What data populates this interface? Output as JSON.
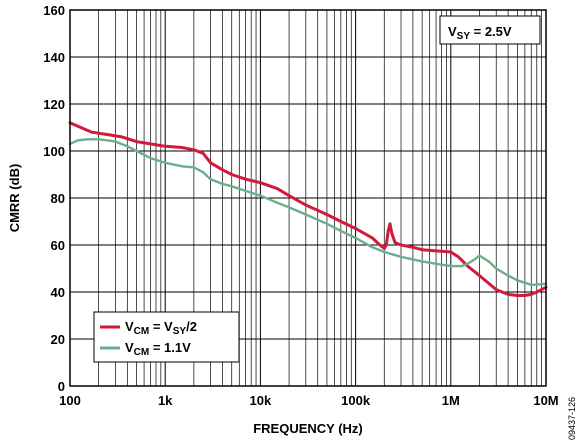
{
  "chart_data": {
    "type": "line",
    "xscale": "log",
    "xlim": [
      100,
      10000000
    ],
    "ylim": [
      0,
      160
    ],
    "xlabel": "FREQUENCY (Hz)",
    "ylabel": "CMRR (dB)",
    "x_ticks": [
      {
        "value": 100,
        "label": "100"
      },
      {
        "value": 1000,
        "label": "1k"
      },
      {
        "value": 10000,
        "label": "10k"
      },
      {
        "value": 100000,
        "label": "100k"
      },
      {
        "value": 1000000,
        "label": "1M"
      },
      {
        "value": 10000000,
        "label": "10M"
      }
    ],
    "y_ticks": [
      0,
      20,
      40,
      60,
      80,
      100,
      120,
      140,
      160
    ],
    "grid": true,
    "annotation": {
      "main": "V",
      "sub": "SY",
      "rest": " = 2.5V",
      "placement": "top-right"
    },
    "legend_placement": "bottom-left",
    "series": [
      {
        "legend": {
          "main1": "V",
          "sub1": "CM",
          "mid": " = V",
          "sub2": "SY",
          "rest": "/2"
        },
        "color": "#d21a3a",
        "points": [
          [
            100,
            112
          ],
          [
            130,
            110
          ],
          [
            170,
            108
          ],
          [
            250,
            107
          ],
          [
            350,
            106
          ],
          [
            500,
            104
          ],
          [
            700,
            103
          ],
          [
            1000,
            102
          ],
          [
            1500,
            101.5
          ],
          [
            2000,
            100.5
          ],
          [
            2500,
            99
          ],
          [
            3000,
            95
          ],
          [
            4000,
            92
          ],
          [
            5000,
            90
          ],
          [
            7000,
            88
          ],
          [
            10000,
            86.5
          ],
          [
            15000,
            84
          ],
          [
            20000,
            81
          ],
          [
            30000,
            77
          ],
          [
            50000,
            73
          ],
          [
            70000,
            70
          ],
          [
            100000,
            67
          ],
          [
            150000,
            63
          ],
          [
            180000,
            60
          ],
          [
            200000,
            58.5
          ],
          [
            210000,
            60
          ],
          [
            220000,
            66
          ],
          [
            230000,
            69
          ],
          [
            240000,
            65
          ],
          [
            260000,
            61
          ],
          [
            300000,
            60
          ],
          [
            400000,
            59
          ],
          [
            500000,
            58
          ],
          [
            700000,
            57.5
          ],
          [
            1000000,
            57
          ],
          [
            1200000,
            55
          ],
          [
            1500000,
            51
          ],
          [
            2000000,
            47
          ],
          [
            3000000,
            41
          ],
          [
            4000000,
            39
          ],
          [
            5000000,
            38.5
          ],
          [
            6000000,
            38.5
          ],
          [
            7000000,
            39
          ],
          [
            8000000,
            40
          ],
          [
            10000000,
            42
          ]
        ]
      },
      {
        "legend": {
          "main1": "V",
          "sub1": "CM",
          "rest": " = 1.1V"
        },
        "color": "#6aaf8a",
        "points": [
          [
            100,
            103
          ],
          [
            120,
            104.5
          ],
          [
            150,
            105
          ],
          [
            200,
            105
          ],
          [
            250,
            104.5
          ],
          [
            300,
            104
          ],
          [
            400,
            102
          ],
          [
            500,
            100
          ],
          [
            700,
            97
          ],
          [
            1000,
            95
          ],
          [
            1500,
            93.5
          ],
          [
            2000,
            93
          ],
          [
            2500,
            91
          ],
          [
            3000,
            88
          ],
          [
            4000,
            86
          ],
          [
            5000,
            85
          ],
          [
            7000,
            83
          ],
          [
            10000,
            81
          ],
          [
            15000,
            78
          ],
          [
            20000,
            76
          ],
          [
            30000,
            73
          ],
          [
            50000,
            69
          ],
          [
            70000,
            66
          ],
          [
            100000,
            63
          ],
          [
            150000,
            59
          ],
          [
            200000,
            57
          ],
          [
            300000,
            55
          ],
          [
            500000,
            53
          ],
          [
            700000,
            52
          ],
          [
            1000000,
            51
          ],
          [
            1300000,
            51
          ],
          [
            1500000,
            52
          ],
          [
            1800000,
            54
          ],
          [
            2000000,
            55.5
          ],
          [
            2500000,
            53
          ],
          [
            3000000,
            50
          ],
          [
            4000000,
            47
          ],
          [
            5000000,
            45
          ],
          [
            7000000,
            43
          ],
          [
            10000000,
            43.5
          ]
        ]
      }
    ],
    "figure_id": "09437-126"
  }
}
